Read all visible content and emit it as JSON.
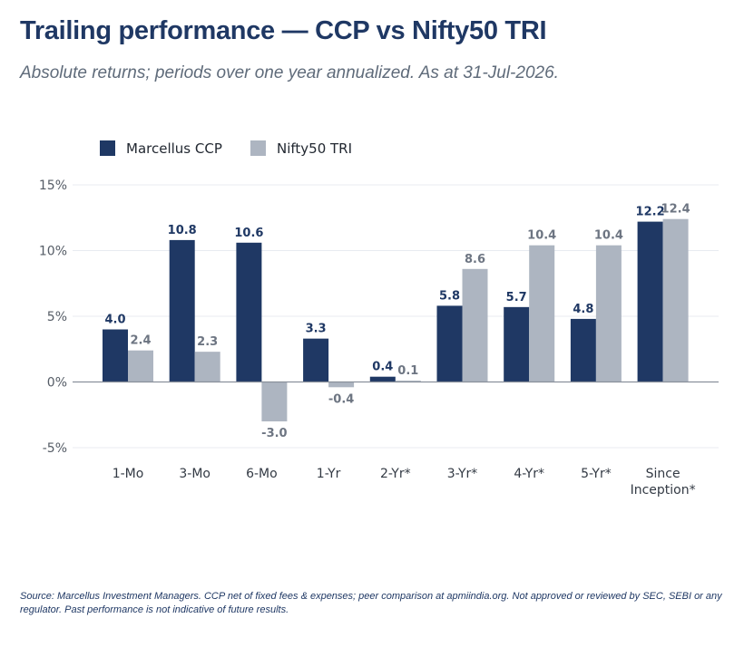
{
  "header": {
    "title": "Trailing performance — CCP vs Nifty50 TRI",
    "subtitle": "Absolute returns; periods over one year annualized. As at 31-Jul-2026."
  },
  "footer": {
    "source": "Source: Marcellus Investment Managers. CCP net of fixed fees & expenses; peer comparison at apmiindia.org. Not approved or reviewed by SEC, SEBI or any regulator. Past performance is not indicative of future results."
  },
  "chart_data": {
    "type": "bar",
    "title": "Trailing performance — CCP vs Nifty50 TRI",
    "subtitle": "Absolute returns; periods over one year annualized. As at 31-Jul-2026.",
    "categories": [
      "1-Mo",
      "3-Mo",
      "6-Mo",
      "1-Yr",
      "2-Yr*",
      "3-Yr*",
      "4-Yr*",
      "5-Yr*",
      "Since Inception*"
    ],
    "series": [
      {
        "name": "Marcellus CCP",
        "color": "#1f3864",
        "values": [
          4.0,
          10.8,
          10.6,
          3.3,
          0.4,
          5.8,
          5.7,
          4.8,
          12.2
        ]
      },
      {
        "name": "Nifty50 TRI",
        "color": "#adb5c1",
        "values": [
          2.4,
          2.3,
          -3.0,
          -0.4,
          0.1,
          8.6,
          10.4,
          10.4,
          12.4
        ]
      }
    ],
    "ylim": [
      -5,
      15
    ],
    "yticks": [
      -5,
      0,
      5,
      10,
      15
    ],
    "ytick_labels": [
      "-5%",
      "0%",
      "5%",
      "10%",
      "15%"
    ],
    "xlabel": "",
    "ylabel": "",
    "legend": "top-left",
    "grid": true
  }
}
